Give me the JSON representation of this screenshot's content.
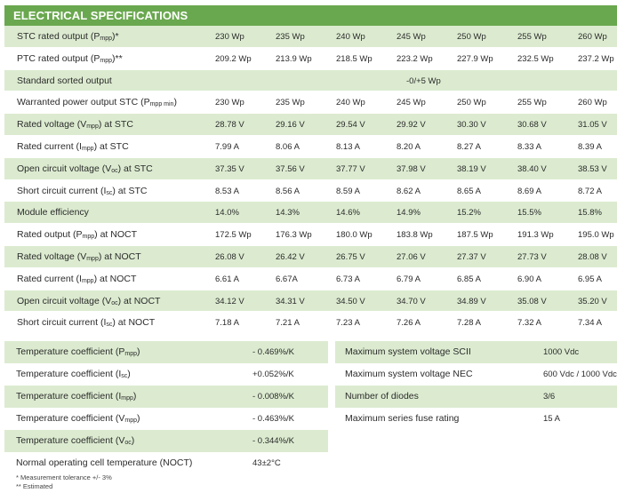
{
  "header": {
    "title": "ELECTRICAL SPECIFICATIONS"
  },
  "spec_rows": [
    {
      "label": "STC rated output (Pmpp)*",
      "values": [
        "230 Wp",
        "235 Wp",
        "240 Wp",
        "245 Wp",
        "250 Wp",
        "255 Wp",
        "260 Wp"
      ]
    },
    {
      "label": "PTC rated output (Pmpp)**",
      "values": [
        "209.2 Wp",
        "213.9 Wp",
        "218.5 Wp",
        "223.2 Wp",
        "227.9 Wp",
        "232.5 Wp",
        "237.2 Wp"
      ]
    },
    {
      "label": "Standard sorted output",
      "span_value": "-0/+5 Wp"
    },
    {
      "label": "Warranted power output STC (Pmpp min)",
      "values": [
        "230 Wp",
        "235 Wp",
        "240 Wp",
        "245 Wp",
        "250 Wp",
        "255 Wp",
        "260 Wp"
      ]
    },
    {
      "label": "Rated voltage (Vmpp) at STC",
      "values": [
        "28.78 V",
        "29.16 V",
        "29.54 V",
        "29.92 V",
        "30.30 V",
        "30.68 V",
        "31.05 V"
      ]
    },
    {
      "label": "Rated current (Impp) at STC",
      "values": [
        "7.99 A",
        "8.06 A",
        "8.13 A",
        "8.20 A",
        "8.27 A",
        "8.33 A",
        "8.39 A"
      ]
    },
    {
      "label": "Open circuit voltage (Voc) at STC",
      "values": [
        "37.35 V",
        "37.56 V",
        "37.77 V",
        "37.98 V",
        "38.19 V",
        "38.40 V",
        "38.53 V"
      ]
    },
    {
      "label": "Short circuit current (Isc) at STC",
      "values": [
        "8.53 A",
        "8.56 A",
        "8.59 A",
        "8.62 A",
        "8.65 A",
        "8.69 A",
        "8.72 A"
      ]
    },
    {
      "label": "Module efficiency",
      "values": [
        "14.0%",
        "14.3%",
        "14.6%",
        "14.9%",
        "15.2%",
        "15.5%",
        "15.8%"
      ]
    },
    {
      "label": "Rated output (Pmpp) at NOCT",
      "values": [
        "172.5 Wp",
        "176.3 Wp",
        "180.0 Wp",
        "183.8 Wp",
        "187.5 Wp",
        "191.3 Wp",
        "195.0 Wp"
      ]
    },
    {
      "label": "Rated voltage (Vmpp) at NOCT",
      "values": [
        "26.08 V",
        "26.42 V",
        "26.75 V",
        "27.06 V",
        "27.37 V",
        "27.73 V",
        "28.08 V"
      ]
    },
    {
      "label": "Rated current (Impp) at NOCT",
      "values": [
        "6.61 A",
        "6.67A",
        "6.73 A",
        "6.79 A",
        "6.85 A",
        "6.90 A",
        "6.95 A"
      ]
    },
    {
      "label": "Open circuit voltage (Voc) at NOCT",
      "values": [
        "34.12 V",
        "34.31 V",
        "34.50 V",
        "34.70 V",
        "34.89 V",
        "35.08 V",
        "35.20 V"
      ]
    },
    {
      "label": "Short circuit current (Isc) at NOCT",
      "values": [
        "7.18 A",
        "7.21 A",
        "7.23 A",
        "7.26 A",
        "7.28 A",
        "7.32 A",
        "7.34 A"
      ]
    }
  ],
  "temperature_coefficients": [
    {
      "label": "Temperature coefficient (Pmpp)",
      "value": "- 0.469%/K"
    },
    {
      "label": "Temperature coefficient (Isc)",
      "value": "+0.052%/K"
    },
    {
      "label": "Temperature coefficient (Impp)",
      "value": "- 0.008%/K"
    },
    {
      "label": "Temperature coefficient (Vmpp)",
      "value": "- 0.463%/K"
    },
    {
      "label": "Temperature coefficient (Voc)",
      "value": "- 0.344%/K"
    },
    {
      "label": "Normal operating cell temperature (NOCT)",
      "value": "43±2°C"
    }
  ],
  "system_specs": [
    {
      "label": "Maximum system voltage SCII",
      "value": "1000 Vdc"
    },
    {
      "label": "Maximum system voltage NEC",
      "value": "600 Vdc / 1000 Vdc"
    },
    {
      "label": "Number of diodes",
      "value": "3/6"
    },
    {
      "label": "Maximum series fuse rating",
      "value": "15 A"
    }
  ],
  "footnotes": {
    "measurement": "* Measurement  tolerance     +/- 3%",
    "estimated": "** Estimated"
  }
}
